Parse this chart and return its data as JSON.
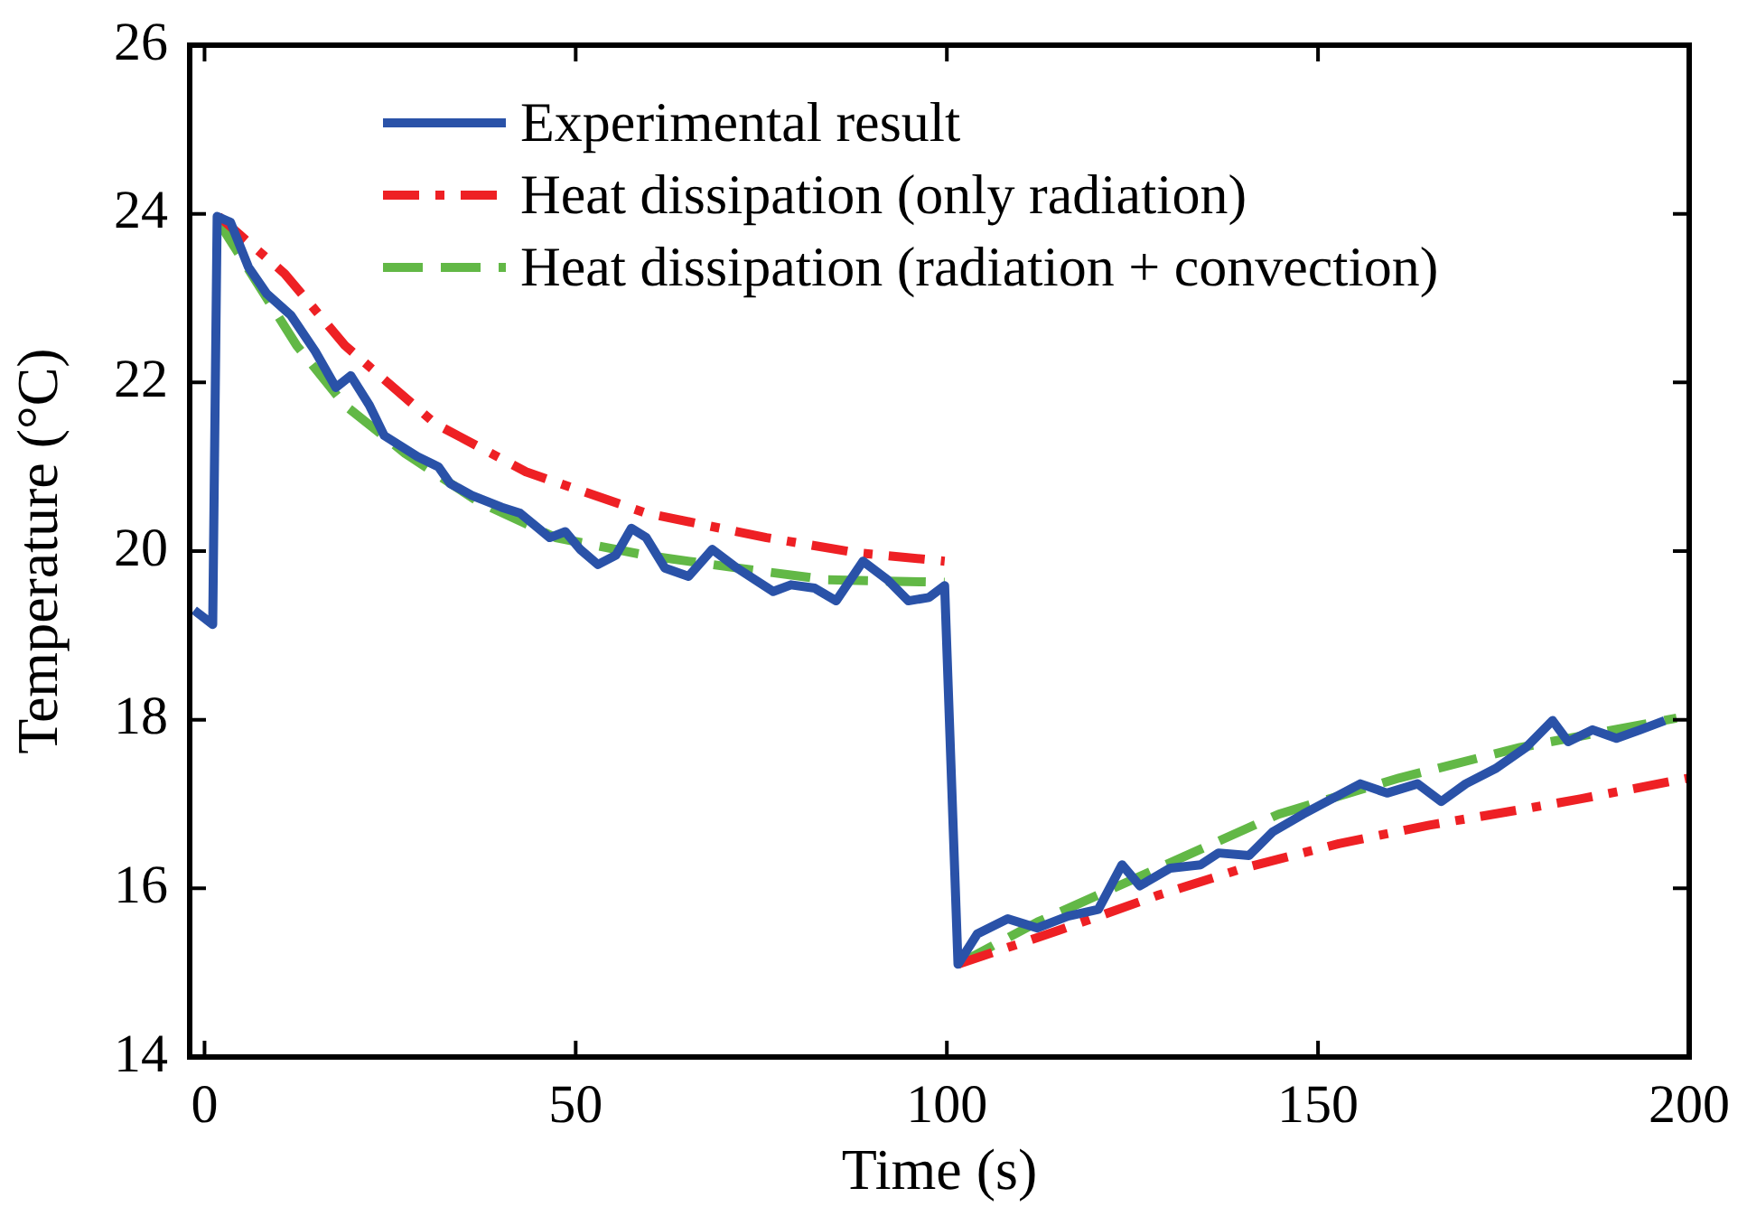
{
  "chart_data": {
    "type": "line",
    "xlabel": "Time (s)",
    "ylabel": "Temperature (°C)",
    "xlim": [
      -2,
      200
    ],
    "ylim": [
      14,
      26
    ],
    "xticks": [
      0,
      50,
      100,
      150,
      200
    ],
    "yticks": [
      14,
      16,
      18,
      20,
      22,
      24,
      26
    ],
    "grid": false,
    "legend": "top right",
    "marker": "none",
    "series": [
      {
        "name": "Experimental result",
        "color": "#2a52a8",
        "line_style": "solid",
        "x": [
          -1.4,
          1.1,
          1.7,
          3.5,
          5.9,
          8.4,
          11.6,
          14.9,
          17.7,
          19.7,
          22.2,
          24.2,
          28.7,
          31.5,
          33.1,
          36,
          40,
          42.5,
          46.5,
          48.6,
          50.6,
          53,
          55.4,
          57.5,
          59.5,
          62,
          65.2,
          68.4,
          71.7,
          76.6,
          79,
          82.2,
          85.1,
          88.7,
          92,
          94.8,
          97.6,
          99.7,
          101.5,
          104.1,
          108.2,
          112.2,
          116.3,
          120.4,
          123.6,
          126,
          130.1,
          134.2,
          136.6,
          140.7,
          143.9,
          148,
          151.2,
          155.7,
          159.3,
          163.4,
          166.6,
          169.9,
          173.9,
          178,
          181.6,
          183.7,
          187,
          190.2,
          193.4,
          196.7
        ],
        "values": [
          19.3,
          19.13,
          23.97,
          23.9,
          23.37,
          23.05,
          22.8,
          22.37,
          21.94,
          22.08,
          21.73,
          21.37,
          21.12,
          21,
          20.8,
          20.66,
          20.52,
          20.45,
          20.16,
          20.23,
          20.02,
          19.84,
          19.95,
          20.27,
          20.16,
          19.8,
          19.7,
          20.02,
          19.8,
          19.52,
          19.6,
          19.56,
          19.41,
          19.88,
          19.66,
          19.41,
          19.45,
          19.59,
          15.1,
          15.46,
          15.64,
          15.53,
          15.67,
          15.75,
          16.28,
          16.03,
          16.24,
          16.28,
          16.42,
          16.39,
          16.67,
          16.88,
          17.03,
          17.24,
          17.13,
          17.24,
          17.03,
          17.24,
          17.42,
          17.67,
          17.99,
          17.74,
          17.88,
          17.78,
          17.88,
          17.99
        ]
      },
      {
        "name": "Heat dissipation (only radiation)",
        "color": "#ee2024",
        "line_style": "dashdot",
        "x": [
          1.9,
          10.8,
          18.9,
          31.1,
          43.3,
          59.5,
          75.7,
          87.9,
          99.7,
          100.6,
          101.5,
          115,
          128.5,
          140,
          152.8,
          165,
          177,
          185.3,
          200
        ],
        "values": [
          23.97,
          23.29,
          22.44,
          21.51,
          20.94,
          20.45,
          20.16,
          19.98,
          19.88,
          null,
          15.1,
          15.5,
          15.92,
          16.24,
          16.53,
          16.75,
          16.93,
          17.06,
          17.31
        ]
      },
      {
        "name": "Heat dissipation (radiation + convection)",
        "color": "#62b846",
        "line_style": "dashed",
        "x": [
          1.7,
          6.8,
          12.4,
          18.9,
          27,
          36.8,
          47.3,
          59.5,
          71.7,
          83.9,
          99.7,
          100.6,
          101.5,
          112.2,
          128.5,
          144.7,
          161,
          177.2,
          198.3
        ],
        "values": [
          23.93,
          23.22,
          22.44,
          21.73,
          21.16,
          20.59,
          20.16,
          19.95,
          19.8,
          19.66,
          19.63,
          null,
          15.1,
          15.6,
          16.24,
          16.88,
          17.31,
          17.67,
          18.02
        ]
      }
    ]
  }
}
